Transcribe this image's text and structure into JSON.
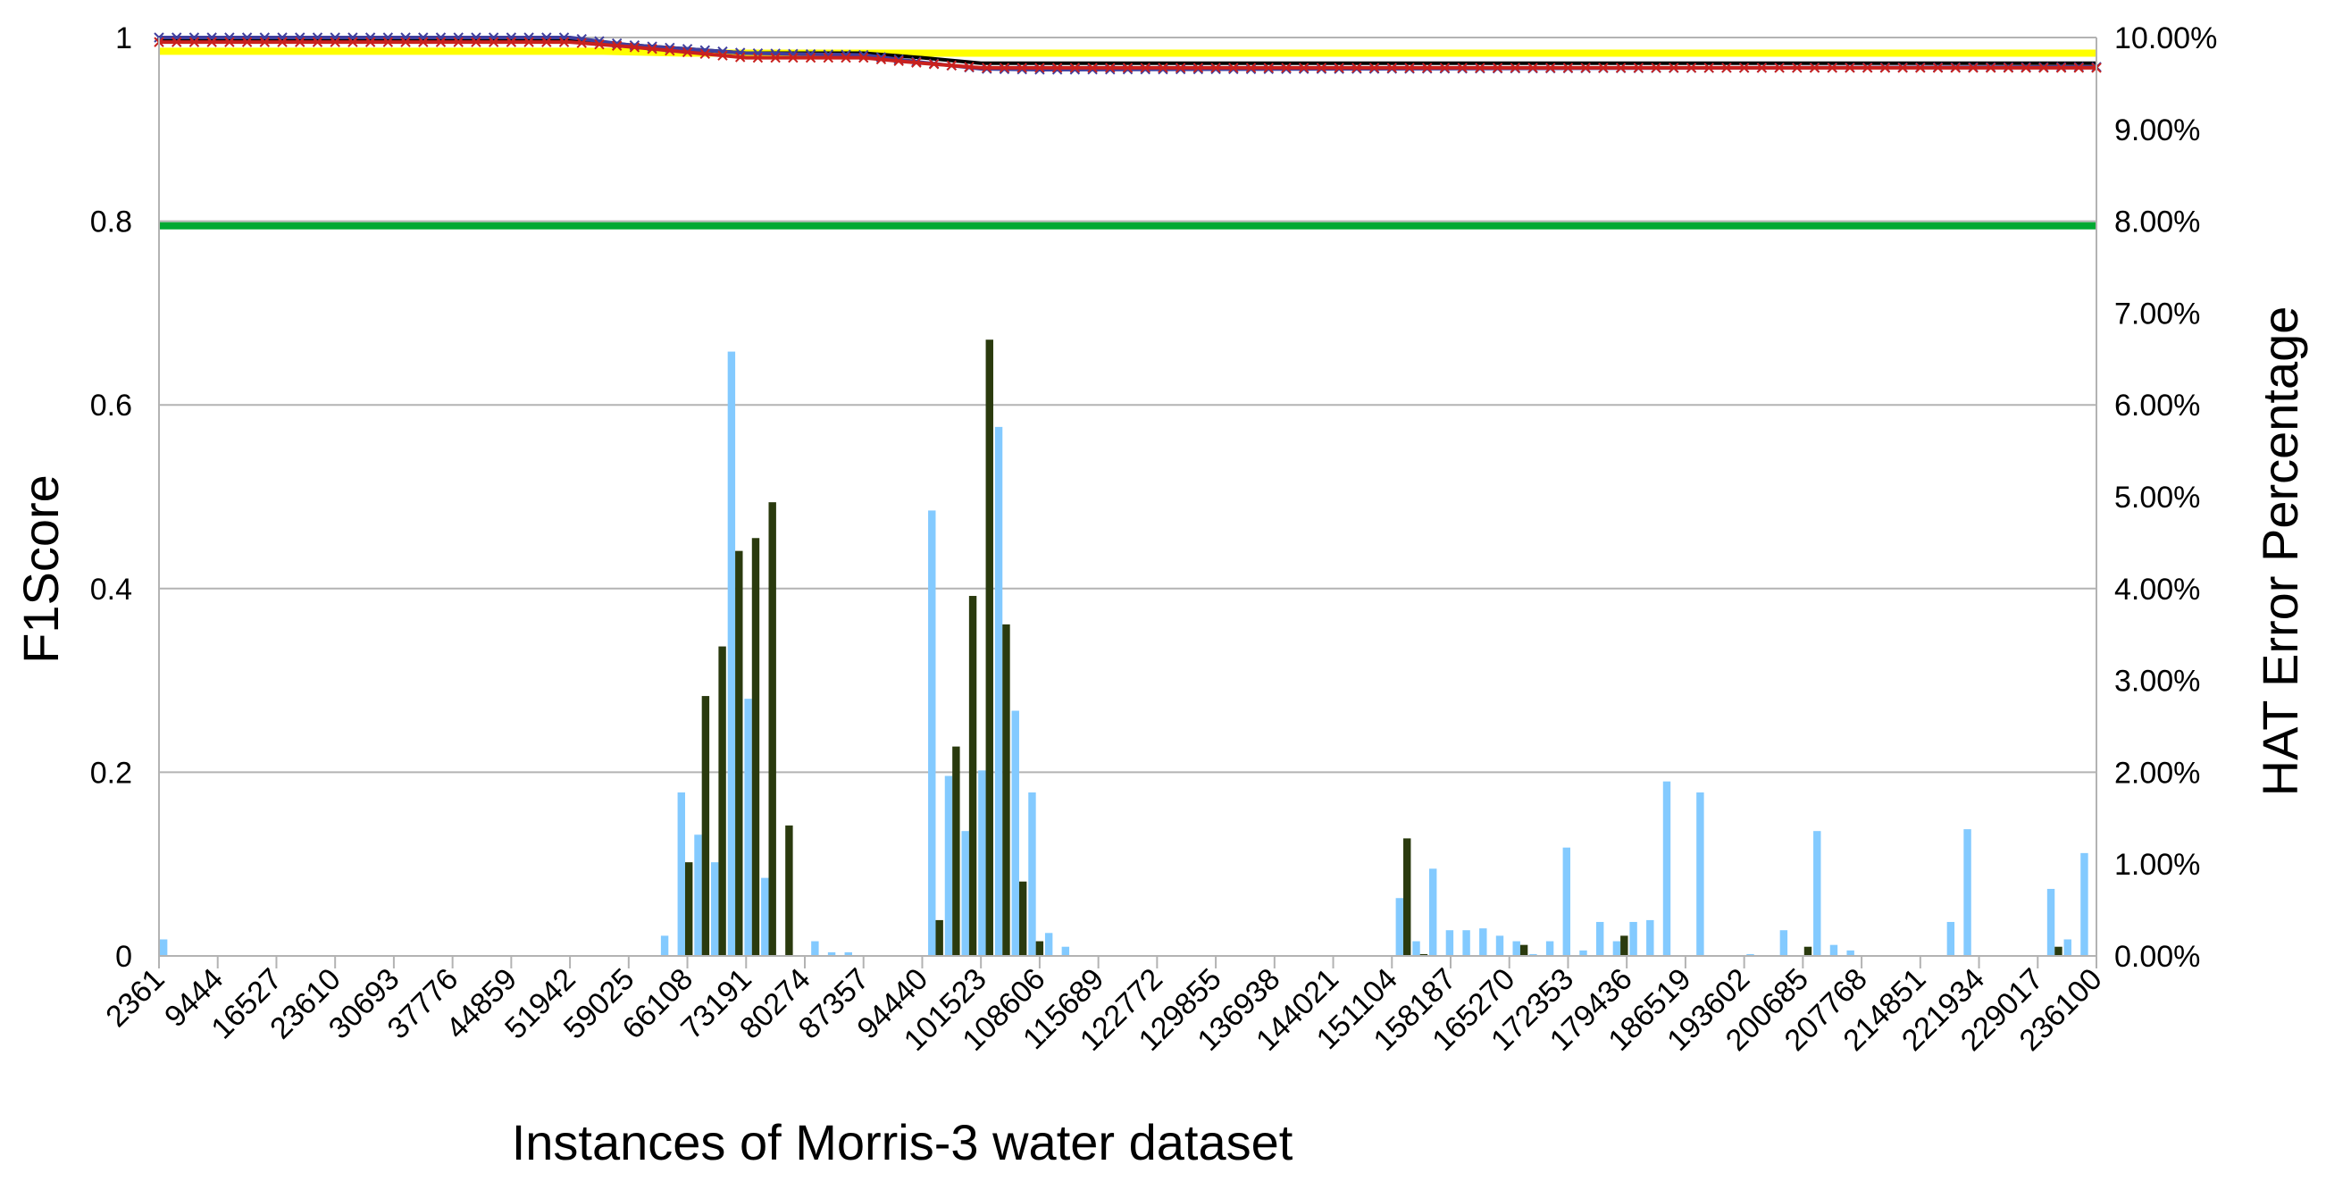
{
  "chart_data": {
    "type": "bar",
    "xlabel": "Instances of Morris-3 water dataset",
    "ylabel": "F1Score",
    "y2label": "HAT Error Percentage",
    "ylim": [
      0,
      1
    ],
    "y2lim": [
      0,
      0.1
    ],
    "grid": true,
    "legend": "none",
    "y_ticks": [
      "0",
      "0.2",
      "0.4",
      "0.6",
      "0.8",
      "1"
    ],
    "y2_ticks": [
      "0.00%",
      "1.00%",
      "2.00%",
      "3.00%",
      "4.00%",
      "5.00%",
      "6.00%",
      "7.00%",
      "8.00%",
      "9.00%",
      "10.00%"
    ],
    "x_ticks": [
      "2361",
      "9444",
      "16527",
      "23610",
      "30693",
      "37776",
      "44859",
      "51942",
      "59025",
      "66108",
      "73191",
      "80274",
      "87357",
      "94440",
      "101523",
      "108606",
      "115689",
      "122772",
      "129855",
      "136938",
      "144021",
      "151104",
      "158187",
      "165270",
      "172353",
      "179436",
      "186519",
      "193602",
      "200685",
      "207768",
      "214851",
      "221934",
      "229017",
      "236100"
    ],
    "series": [
      {
        "kind": "bar",
        "axis": "y2",
        "color": "#83CAFF",
        "values": [
          0.0018,
          0,
          0,
          0,
          0,
          0,
          0,
          0,
          0,
          0,
          0,
          0,
          0,
          0,
          0,
          0,
          0,
          0,
          0,
          0,
          0,
          0,
          0,
          0,
          0,
          0,
          0,
          0,
          0,
          0,
          0.0022,
          0.0178,
          0.0132,
          0.0102,
          0.0658,
          0.028,
          0.0085,
          0,
          0,
          0.0016,
          0.0004,
          0.0004,
          0,
          0,
          0,
          0,
          0.0485,
          0.0196,
          0.0136,
          0.0202,
          0.0576,
          0.0267,
          0.0178,
          0.0025,
          0.001,
          0,
          0,
          0,
          0,
          0,
          0,
          0,
          0,
          0,
          0,
          0,
          0,
          0,
          0,
          0,
          0,
          0,
          0,
          0,
          0.0063,
          0.0016,
          0.0095,
          0.0028,
          0.0028,
          0.003,
          0.0022,
          0.0016,
          0.0002,
          0.0016,
          0.0118,
          0.0006,
          0.0037,
          0.0016,
          0.0037,
          0.0039,
          0.019,
          0,
          0.0178,
          0,
          0,
          0.0002,
          0,
          0.0028,
          0,
          0.0136,
          0.0012,
          0.0006,
          0,
          0,
          0,
          0,
          0,
          0.0037,
          0.0138,
          0,
          0,
          0,
          0,
          0.0073,
          0.0018,
          0.0112
        ]
      },
      {
        "kind": "bar",
        "axis": "y2",
        "color": "#2A3A0E",
        "values": [
          0,
          0,
          0,
          0,
          0,
          0,
          0,
          0,
          0,
          0,
          0,
          0,
          0,
          0,
          0,
          0,
          0,
          0,
          0,
          0,
          0,
          0,
          0,
          0,
          0,
          0,
          0,
          0,
          0,
          0,
          0,
          0.0102,
          0.0283,
          0.0337,
          0.0441,
          0.0455,
          0.0494,
          0.0142,
          0,
          0,
          0,
          0,
          0,
          0,
          0,
          0,
          0.0039,
          0.0228,
          0.0392,
          0.0671,
          0.0361,
          0.0081,
          0.0016,
          0,
          0,
          0,
          0,
          0,
          0,
          0,
          0,
          0,
          0,
          0,
          0,
          0,
          0,
          0,
          0,
          0,
          0,
          0,
          0,
          0,
          0.0128,
          0.0002,
          0,
          0,
          0,
          0,
          0,
          0.0012,
          0,
          0,
          0,
          0,
          0,
          0.0022,
          0,
          0,
          0,
          0,
          0,
          0,
          0,
          0,
          0,
          0,
          0.001,
          0,
          0,
          0,
          0,
          0,
          0,
          0,
          0,
          0,
          0,
          0,
          0,
          0,
          0,
          0.001
        ]
      },
      {
        "kind": "line",
        "axis": "y",
        "color": "#00A933",
        "x": [
          "2361",
          "236100"
        ],
        "values": [
          0.795,
          0.795
        ]
      },
      {
        "kind": "line",
        "axis": "y",
        "color": "#FFFF00",
        "x": [
          "2361",
          "56000",
          "66108",
          "236100"
        ],
        "values": [
          0.985,
          0.985,
          0.983,
          0.983
        ]
      },
      {
        "kind": "line",
        "axis": "y",
        "color": "#000000",
        "x": [
          "2361",
          "51942",
          "59025",
          "73191",
          "87357",
          "94440",
          "101523",
          "108606",
          "236100"
        ],
        "values": [
          0.997,
          0.997,
          0.992,
          0.983,
          0.983,
          0.978,
          0.972,
          0.972,
          0.972
        ]
      },
      {
        "kind": "line",
        "axis": "y",
        "color": "#3F3F9F",
        "x": [
          "2361",
          "51942",
          "59025",
          "73191",
          "87357",
          "94440",
          "101523",
          "108606",
          "236100"
        ],
        "values": [
          1.0,
          1.0,
          0.992,
          0.983,
          0.981,
          0.973,
          0.966,
          0.965,
          0.968
        ]
      },
      {
        "kind": "line",
        "axis": "y",
        "color": "#C9211E",
        "x": [
          "2361",
          "51942",
          "59025",
          "73191",
          "87357",
          "94440",
          "101523",
          "108606",
          "236100"
        ],
        "values": [
          0.995,
          0.995,
          0.99,
          0.978,
          0.978,
          0.972,
          0.967,
          0.967,
          0.967
        ]
      }
    ]
  }
}
